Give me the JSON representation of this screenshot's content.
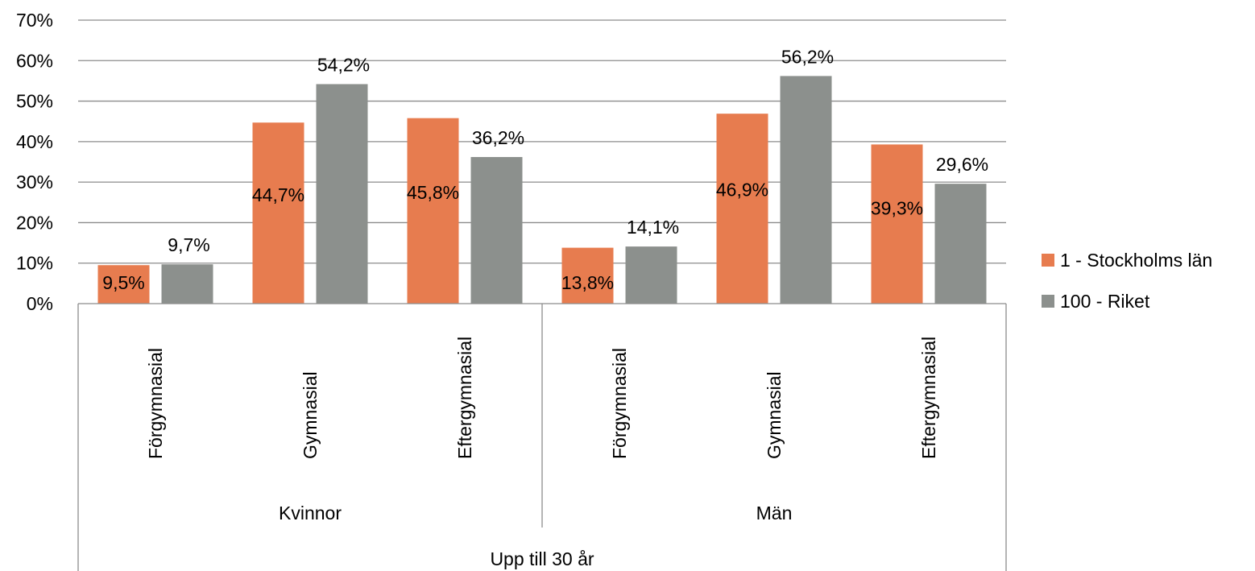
{
  "chart_data": {
    "type": "bar",
    "ylim": [
      0,
      70
    ],
    "y_ticks": [
      "0%",
      "10%",
      "20%",
      "30%",
      "40%",
      "50%",
      "60%",
      "70%"
    ],
    "y_tick_values": [
      0,
      10,
      20,
      30,
      40,
      50,
      60,
      70
    ],
    "grid": true,
    "legend_position": "right",
    "top_group": "Upp till 30 år",
    "groups": [
      {
        "label": "Kvinnor",
        "categories": [
          "Förgymnasial",
          "Gymnasial",
          "Eftergymnasial"
        ]
      },
      {
        "label": "Män",
        "categories": [
          "Förgymnasial",
          "Gymnasial",
          "Eftergymnasial"
        ]
      }
    ],
    "categories": [
      "Förgymnasial",
      "Gymnasial",
      "Eftergymnasial",
      "Förgymnasial",
      "Gymnasial",
      "Eftergymnasial"
    ],
    "series": [
      {
        "name": "1 - Stockholms län",
        "color": "#e77c4f",
        "values": [
          9.5,
          44.7,
          45.8,
          13.8,
          46.9,
          39.3
        ],
        "labels": [
          "9,5%",
          "44,7%",
          "45,8%",
          "13,8%",
          "46,9%",
          "39,3%"
        ]
      },
      {
        "name": "100 - Riket",
        "color": "#8c908d",
        "values": [
          9.7,
          54.2,
          36.2,
          14.1,
          56.2,
          29.6
        ],
        "labels": [
          "9,7%",
          "54,2%",
          "36,2%",
          "14,1%",
          "56,2%",
          "29,6%"
        ]
      }
    ]
  }
}
